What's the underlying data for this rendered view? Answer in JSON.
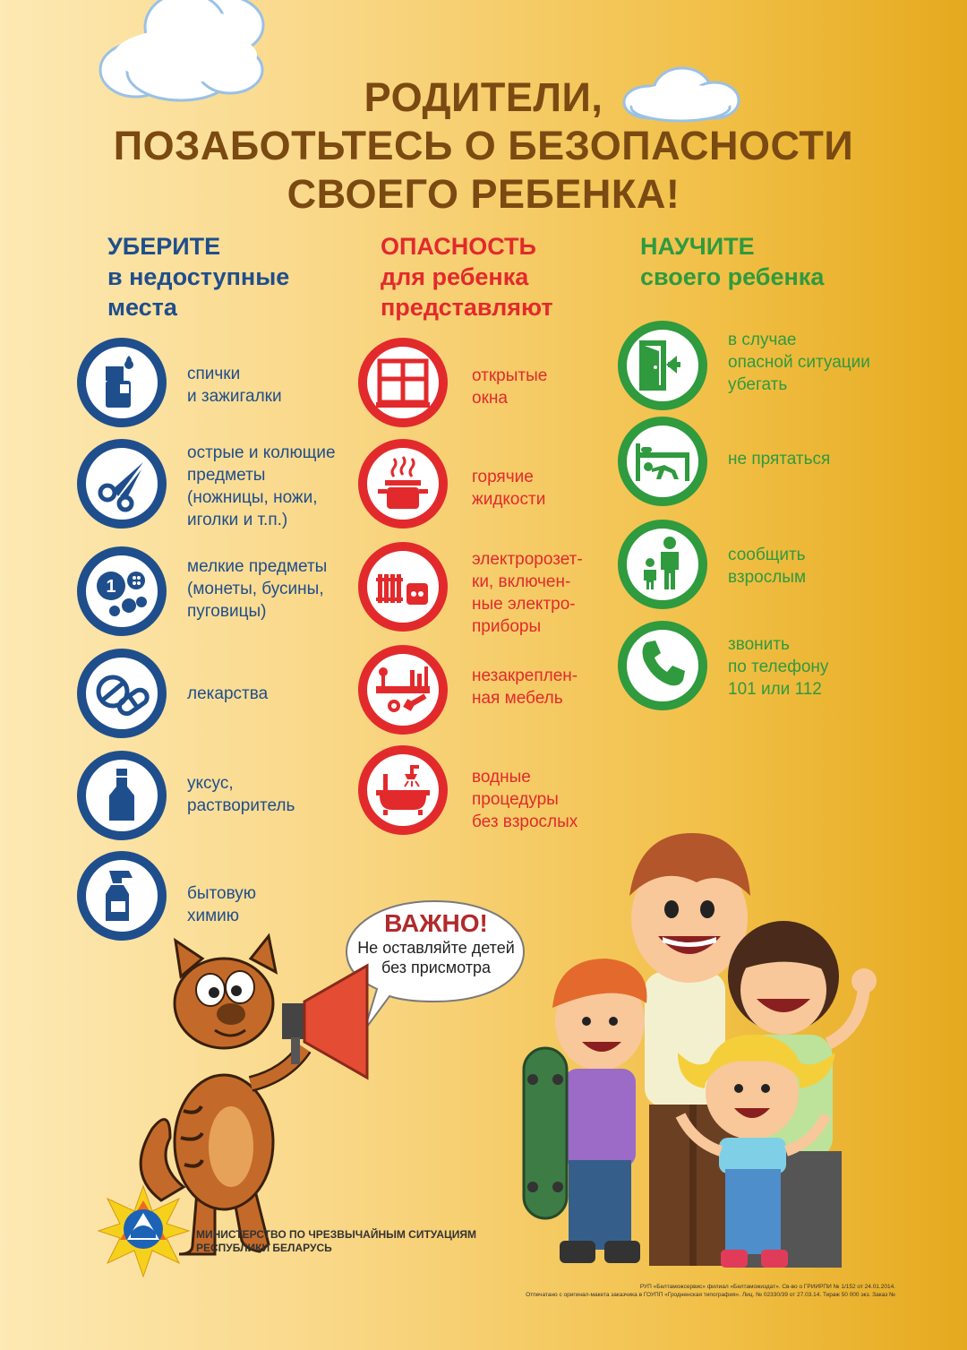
{
  "title": {
    "line1": "РОДИТЕЛИ,",
    "line2": "ПОЗАБОТЬТЕСЬ О БЕЗОПАСНОСТИ",
    "line3": "СВОЕГО РЕБЕНКА!"
  },
  "columns": {
    "left": {
      "head1": "УБЕРИТЕ",
      "head2": "в недоступные",
      "head3": "места",
      "color": "#1f4e8c",
      "items": [
        {
          "icon": "lighter-matches-icon",
          "lines": [
            "спички",
            "и зажигалки"
          ]
        },
        {
          "icon": "scissors-icon",
          "lines": [
            "острые и колющие",
            "предметы",
            "(ножницы, ножи,",
            "иголки и т.п.)"
          ]
        },
        {
          "icon": "coins-buttons-icon",
          "lines": [
            "мелкие предметы",
            "(монеты, бусины,",
            "пуговицы)"
          ]
        },
        {
          "icon": "pills-icon",
          "lines": [
            "лекарства"
          ]
        },
        {
          "icon": "bottle-icon",
          "lines": [
            "уксус,",
            "растворитель"
          ]
        },
        {
          "icon": "spray-bottle-icon",
          "lines": [
            "бытовую",
            "химию"
          ]
        }
      ]
    },
    "middle": {
      "head1": "ОПАСНОСТЬ",
      "head2": "для ребенка",
      "head3": "представляют",
      "color": "#e22a2c",
      "items": [
        {
          "icon": "window-icon",
          "lines": [
            "открытые",
            "окна"
          ]
        },
        {
          "icon": "hot-pot-icon",
          "lines": [
            "горячие",
            "жидкости"
          ]
        },
        {
          "icon": "socket-heater-icon",
          "lines": [
            "электророзет-",
            "ки, включен-",
            "ные электро-",
            "приборы"
          ]
        },
        {
          "icon": "shelf-icon",
          "lines": [
            "незакреплен-",
            "ная мебель"
          ]
        },
        {
          "icon": "bathtub-icon",
          "lines": [
            "водные",
            "процедуры",
            "без взрослых"
          ]
        }
      ]
    },
    "right": {
      "head1": "НАУЧИТЕ",
      "head2": "своего ребенка",
      "color": "#2f9a3e",
      "items": [
        {
          "icon": "exit-door-icon",
          "lines": [
            "в случае",
            "опасной ситуации",
            "убегать"
          ]
        },
        {
          "icon": "under-bed-icon",
          "lines": [
            "не прятаться"
          ]
        },
        {
          "icon": "adult-child-icon",
          "lines": [
            "сообщить",
            "взрослым"
          ]
        },
        {
          "icon": "phone-icon",
          "lines": [
            "звонить",
            "по телефону",
            "101 или 112"
          ]
        }
      ]
    }
  },
  "important": {
    "title": "ВАЖНО!",
    "line1": "Не оставляйте детей",
    "line2": "без присмотра"
  },
  "ministry": {
    "line1": "МИНИСТЕРСТВО ПО ЧРЕЗВЫЧАЙНЫМ СИТУАЦИЯМ",
    "line2": "РЕСПУБЛИКИ БЕЛАРУСЬ"
  },
  "imprint": {
    "line1": "РУП «Белтаможсервис» филиал «Белтаможиздат». Св-во о ГРИИРПИ № 1/152 от 24.01.2014.",
    "line2": "Отпечатано с оригинал-макета заказчика в ГОУПП «Гродненская типография». Лиц. № 02330/39 от 27.03.14. Тираж 50 000 экз. Заказ №"
  },
  "colors": {
    "title": "#7a4a12",
    "blue": "#1f4e8c",
    "red": "#e22a2c",
    "green": "#2f9a3e",
    "bg_light": "#fde9b4",
    "bg_dark": "#e5a91e"
  }
}
